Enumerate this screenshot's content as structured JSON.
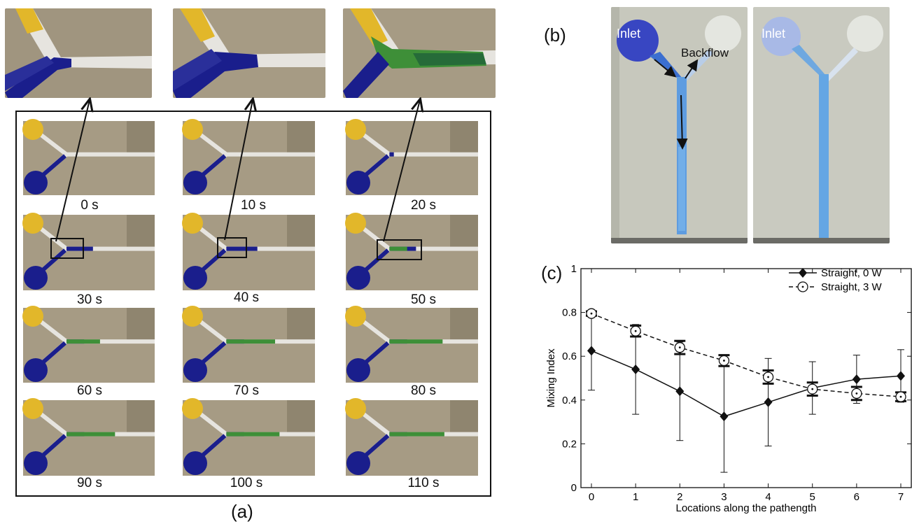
{
  "panel_labels": {
    "a": "(a)",
    "b": "(b)",
    "c": "(c)"
  },
  "colors": {
    "paper": "#a69b84",
    "channel": "#e6e4df",
    "blue_dye": "#1a1e8c",
    "yellow_dye": "#e2b72a",
    "green_mix": "#3e8f38"
  },
  "time_labels": [
    "0 s",
    "10 s",
    "20 s",
    "30 s",
    "40 s",
    "50 s",
    "60 s",
    "70 s",
    "80 s",
    "90 s",
    "100 s",
    "110 s"
  ],
  "panel_b": {
    "left_inlet": "Inlet",
    "backflow": "Backflow",
    "right_inlet": "Inlet"
  },
  "chart_data": {
    "type": "line",
    "xlabel": "Locations along the pathength",
    "ylabel": "Mixing Index",
    "xlim": [
      0,
      7
    ],
    "ylim": [
      0,
      1
    ],
    "x_ticks": [
      "0",
      "1",
      "2",
      "3",
      "4",
      "5",
      "6",
      "7"
    ],
    "y_ticks": [
      "0",
      "0.2",
      "0.4",
      "0.6",
      "0.8",
      "1"
    ],
    "legend_position": "top-right",
    "x": [
      0,
      1,
      2,
      3,
      4,
      5,
      6,
      7
    ],
    "series": [
      {
        "name": "Straight, 0 W",
        "marker": "diamond",
        "line": "solid",
        "values": [
          0.625,
          0.54,
          0.44,
          0.325,
          0.39,
          0.455,
          0.495,
          0.51
        ],
        "error": [
          0.18,
          0.205,
          0.225,
          0.255,
          0.2,
          0.12,
          0.11,
          0.12
        ]
      },
      {
        "name": "Straight, 3 W",
        "marker": "circle-dot",
        "line": "dashed",
        "values": [
          0.795,
          0.715,
          0.64,
          0.58,
          0.505,
          0.45,
          0.43,
          0.415
        ],
        "error": [
          0.01,
          0.025,
          0.03,
          0.025,
          0.03,
          0.03,
          0.03,
          0.02
        ]
      }
    ]
  }
}
